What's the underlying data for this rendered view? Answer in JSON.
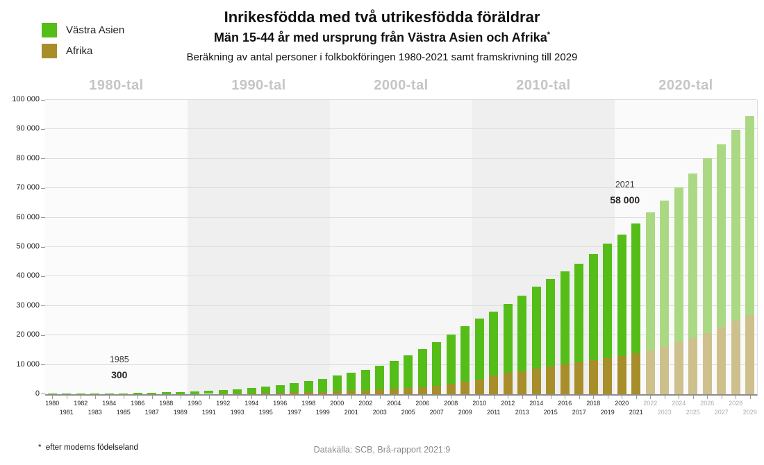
{
  "header": {
    "title": "Inrikesfödda med två utrikesfödda föräldrar",
    "subtitle": "Män 15-44 år med ursprung från Västra Asien och Afrika",
    "subtitle_mark": "*",
    "description": "Beräkning av antal personer i folkbokföringen 1980-2021 samt framskrivning till 2029"
  },
  "legend": {
    "items": [
      {
        "label": "Västra Asien",
        "color": "#55bd18"
      },
      {
        "label": "Afrika",
        "color": "#a78e2b"
      }
    ]
  },
  "chart_data": {
    "type": "bar",
    "stacked": true,
    "title": "Inrikesfödda med två utrikesfödda föräldrar",
    "ylim": [
      0,
      100000
    ],
    "y_ticks": [
      "0",
      "10 000",
      "20 000",
      "30 000",
      "40 000",
      "50 000",
      "60 000",
      "70 000",
      "80 000",
      "90 000",
      "100 000"
    ],
    "categories": [
      1980,
      1981,
      1982,
      1983,
      1984,
      1985,
      1986,
      1987,
      1988,
      1989,
      1990,
      1991,
      1992,
      1993,
      1994,
      1995,
      1996,
      1997,
      1998,
      1999,
      2000,
      2001,
      2002,
      2003,
      2004,
      2005,
      2006,
      2007,
      2008,
      2009,
      2010,
      2011,
      2012,
      2013,
      2014,
      2015,
      2016,
      2017,
      2018,
      2019,
      2020,
      2021,
      2022,
      2023,
      2024,
      2025,
      2026,
      2027,
      2028,
      2029
    ],
    "forecast_from": 2022,
    "series": [
      {
        "name": "Västra Asien",
        "color": "#55bd18",
        "forecast_color": "#abd983",
        "values": [
          90,
          140,
          185,
          230,
          260,
          275,
          370,
          460,
          550,
          740,
          900,
          1050,
          1250,
          1450,
          1800,
          2150,
          2600,
          3100,
          3850,
          4600,
          5400,
          6100,
          7000,
          8050,
          9600,
          11050,
          12850,
          14800,
          16900,
          18900,
          20800,
          21800,
          23500,
          25700,
          27900,
          29700,
          31600,
          33500,
          36100,
          39000,
          41200,
          44000,
          46900,
          49700,
          52400,
          56000,
          59300,
          62000,
          65000,
          67700
        ]
      },
      {
        "name": "Afrika",
        "color": "#a78e2b",
        "forecast_color": "#cdc08d",
        "values": [
          10,
          10,
          15,
          20,
          20,
          25,
          30,
          40,
          50,
          60,
          100,
          150,
          200,
          250,
          300,
          400,
          500,
          600,
          650,
          700,
          900,
          1100,
          1300,
          1550,
          1800,
          2050,
          2450,
          2900,
          3500,
          4200,
          4900,
          6300,
          7200,
          7900,
          8700,
          9500,
          10100,
          10900,
          11600,
          12300,
          13000,
          14000,
          14800,
          16000,
          17800,
          19100,
          20800,
          22900,
          24900,
          26900
        ]
      }
    ],
    "decades": [
      {
        "label": "1980-tal",
        "start_year": 1980,
        "shade": "#fbfbfb"
      },
      {
        "label": "1990-tal",
        "start_year": 1990,
        "shade": "#efefef"
      },
      {
        "label": "2000-tal",
        "start_year": 2000,
        "shade": "#f6f6f6"
      },
      {
        "label": "2010-tal",
        "start_year": 2010,
        "shade": "#efefef"
      },
      {
        "label": "2020-tal",
        "start_year": 2020,
        "shade": "#fafafa"
      }
    ],
    "annotations": [
      {
        "year": 1985,
        "year_label": "1985",
        "value_label": "300"
      },
      {
        "year": 2021,
        "year_label": "2021",
        "value_label": "58 000"
      }
    ],
    "grid": true,
    "legend_position": "top-left"
  },
  "footer": {
    "footnote_mark": "*",
    "footnote_text": "efter moderns födelseland",
    "source": "Datakälla: SCB, Brå-rapport 2021:9"
  }
}
